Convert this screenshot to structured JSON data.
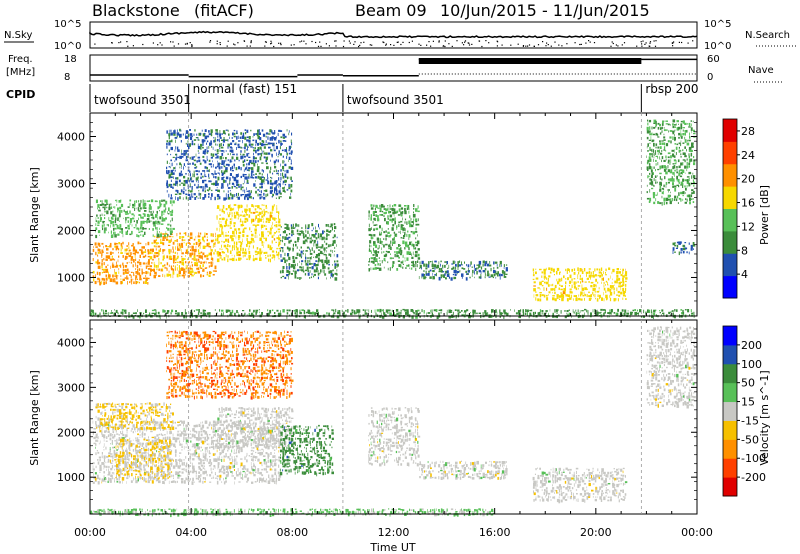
{
  "header": {
    "station": "Blackstone",
    "mode": "(fitACF)",
    "beam": "Beam 09",
    "date_range": "10/Jun/2015 - 11/Jun/2015"
  },
  "strips": {
    "nsky_label": "N.Sky",
    "nsky_ticks": [
      "10^5",
      "10^0"
    ],
    "nsearch_label": "N.Search",
    "nsearch_ticks": [
      "10^5",
      "10^0"
    ],
    "freq_label_1": "Freq.",
    "freq_label_2": "[MHz]",
    "freq_ticks": [
      "18",
      "8"
    ],
    "nave_label": "Nave",
    "nave_ticks": [
      "60",
      "0"
    ],
    "cpid_label": "CPID",
    "cpid_segments": [
      {
        "name": "twofsound 3501",
        "start_h": 0,
        "end_h": 3.9
      },
      {
        "name": "normal (fast) 151",
        "start_h": 3.9,
        "end_h": 10.0
      },
      {
        "name": "twofsound 3501",
        "start_h": 10.0,
        "end_h": 21.8
      },
      {
        "name": "rbsp 200",
        "start_h": 21.8,
        "end_h": 24
      }
    ],
    "freq_steps": [
      {
        "start_h": 0,
        "end_h": 3.9,
        "mhz": 10.5
      },
      {
        "start_h": 3.9,
        "end_h": 8.2,
        "mhz": 9.8
      },
      {
        "start_h": 8.2,
        "end_h": 10.0,
        "mhz": 10.5
      },
      {
        "start_h": 10.0,
        "end_h": 13.0,
        "mhz": 10.2
      },
      {
        "start_h": 13.0,
        "end_h": 21.8,
        "mhz": 17.0
      },
      {
        "start_h": 21.8,
        "end_h": 24,
        "mhz": 17.0
      }
    ]
  },
  "chart_data": [
    {
      "type": "heatmap",
      "quantity": "Power",
      "ylabel": "Slant Range [km]",
      "x_range_h": [
        0,
        24
      ],
      "ylim": [
        180,
        4500
      ],
      "yticks": [
        "1000",
        "2000",
        "3000",
        "4000"
      ],
      "colorbar_label": "Power [dB]",
      "colorbar_ticks": [
        "28",
        "24",
        "20",
        "16",
        "12",
        "8",
        "4"
      ],
      "colorbar_values": [
        28,
        24,
        20,
        16,
        12,
        8,
        4
      ],
      "colorbar_range": [
        0,
        30
      ],
      "colors": [
        "#0000ff",
        "#2050b0",
        "#3b8c3b",
        "#58c058",
        "#f6d800",
        "#ff9000",
        "#ff4000",
        "#e00000"
      ],
      "regions": [
        {
          "t0": 0.1,
          "t1": 2.5,
          "r0": 900,
          "r1": 1800,
          "value": 20
        },
        {
          "t0": 2.5,
          "t1": 5.0,
          "r0": 1050,
          "r1": 2000,
          "value": 19
        },
        {
          "t0": 5.0,
          "t1": 7.5,
          "r0": 1400,
          "r1": 2600,
          "value": 17
        },
        {
          "t0": 7.5,
          "t1": 9.8,
          "r0": 1000,
          "r1": 2200,
          "value": 9
        },
        {
          "t0": 0.2,
          "t1": 3.3,
          "r0": 1900,
          "r1": 2700,
          "value": 12
        },
        {
          "t0": 3.0,
          "t1": 8.0,
          "r0": 2700,
          "r1": 4200,
          "value": 7
        },
        {
          "t0": 11.0,
          "t1": 13.0,
          "r0": 1200,
          "r1": 2600,
          "value": 11
        },
        {
          "t0": 13.0,
          "t1": 16.5,
          "r0": 1000,
          "r1": 1400,
          "value": 8
        },
        {
          "t0": 17.5,
          "t1": 21.2,
          "r0": 550,
          "r1": 1250,
          "value": 17
        },
        {
          "t0": 22.0,
          "t1": 23.9,
          "r0": 2600,
          "r1": 4400,
          "value": 11
        },
        {
          "t0": 23.0,
          "t1": 23.9,
          "r0": 1550,
          "r1": 1800,
          "value": 7
        },
        {
          "t0": 0.0,
          "t1": 24.0,
          "r0": 190,
          "r1": 360,
          "value": 10
        }
      ]
    },
    {
      "type": "heatmap",
      "quantity": "Velocity",
      "xlabel": "Time UT",
      "xticks": [
        "00:00",
        "04:00",
        "08:00",
        "12:00",
        "16:00",
        "20:00",
        "00:00"
      ],
      "x_range_h": [
        0,
        24
      ],
      "ylabel": "Slant Range [km]",
      "ylim": [
        180,
        4500
      ],
      "yticks": [
        "1000",
        "2000",
        "3000",
        "4000"
      ],
      "colorbar_label": "Velocity [m s^-1]",
      "colorbar_ticks": [
        "200",
        "100",
        "50",
        "15",
        "-15",
        "-50",
        "-100",
        "-200"
      ],
      "colorbar_values": [
        200,
        100,
        50,
        15,
        -15,
        -50,
        -100,
        -200
      ],
      "colorbar_range": [
        -250,
        250
      ],
      "colors": [
        "#e00000",
        "#ff4000",
        "#ff9000",
        "#f6c000",
        "#c8c8c4",
        "#58c058",
        "#3b8c3b",
        "#2050b0",
        "#0000ff"
      ],
      "regions": [
        {
          "t0": 0.1,
          "t1": 7.5,
          "r0": 900,
          "r1": 2300,
          "value": 0
        },
        {
          "t0": 5.0,
          "t1": 8.0,
          "r0": 1700,
          "r1": 2600,
          "value": 0
        },
        {
          "t0": 1.0,
          "t1": 3.2,
          "r0": 1000,
          "r1": 1900,
          "value": -40
        },
        {
          "t0": 0.2,
          "t1": 3.3,
          "r0": 2100,
          "r1": 2700,
          "value": -40
        },
        {
          "t0": 7.5,
          "t1": 9.6,
          "r0": 1100,
          "r1": 2200,
          "value": 110
        },
        {
          "t0": 3.0,
          "t1": 8.0,
          "r0": 2800,
          "r1": 4300,
          "value": -130
        },
        {
          "t0": 11.0,
          "t1": 13.0,
          "r0": 1300,
          "r1": 2600,
          "value": 0
        },
        {
          "t0": 13.0,
          "t1": 16.5,
          "r0": 1000,
          "r1": 1400,
          "value": 0
        },
        {
          "t0": 17.5,
          "t1": 21.2,
          "r0": 500,
          "r1": 1250,
          "value": 0
        },
        {
          "t0": 22.0,
          "t1": 23.9,
          "r0": 2600,
          "r1": 4400,
          "value": 0
        },
        {
          "t0": 0.0,
          "t1": 16.0,
          "r0": 190,
          "r1": 330,
          "value": 40
        }
      ]
    }
  ]
}
